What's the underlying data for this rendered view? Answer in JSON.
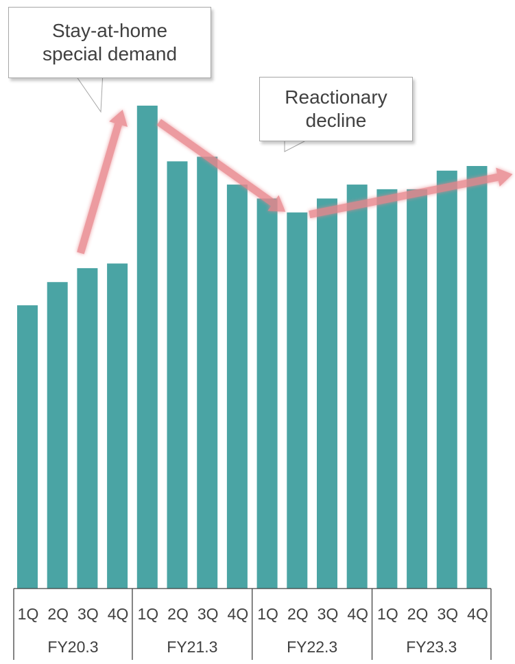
{
  "chart_data": {
    "type": "bar",
    "categories": [
      "1Q",
      "2Q",
      "3Q",
      "4Q",
      "1Q",
      "2Q",
      "3Q",
      "4Q",
      "1Q",
      "2Q",
      "3Q",
      "4Q",
      "1Q",
      "2Q",
      "3Q",
      "4Q"
    ],
    "groups": [
      {
        "label": "FY20.3",
        "count": 4
      },
      {
        "label": "FY21.3",
        "count": 4
      },
      {
        "label": "FY22.3",
        "count": 4
      },
      {
        "label": "FY23.3",
        "count": 4
      }
    ],
    "values": [
      61,
      66,
      69,
      70,
      104,
      92,
      93,
      87,
      84,
      81,
      84,
      87,
      86,
      86,
      90,
      91
    ],
    "ylim": [
      0,
      104
    ],
    "title": "",
    "xlabel": "",
    "ylabel": "",
    "annotations": [
      {
        "text": "Stay-at-home\nspecial demand"
      },
      {
        "text": "Reactionary\ndecline"
      }
    ]
  },
  "colors": {
    "bar": "#4aa4a4",
    "trend_arrow": "#e8868c",
    "axis": "#404040",
    "label_text": "#404040"
  }
}
